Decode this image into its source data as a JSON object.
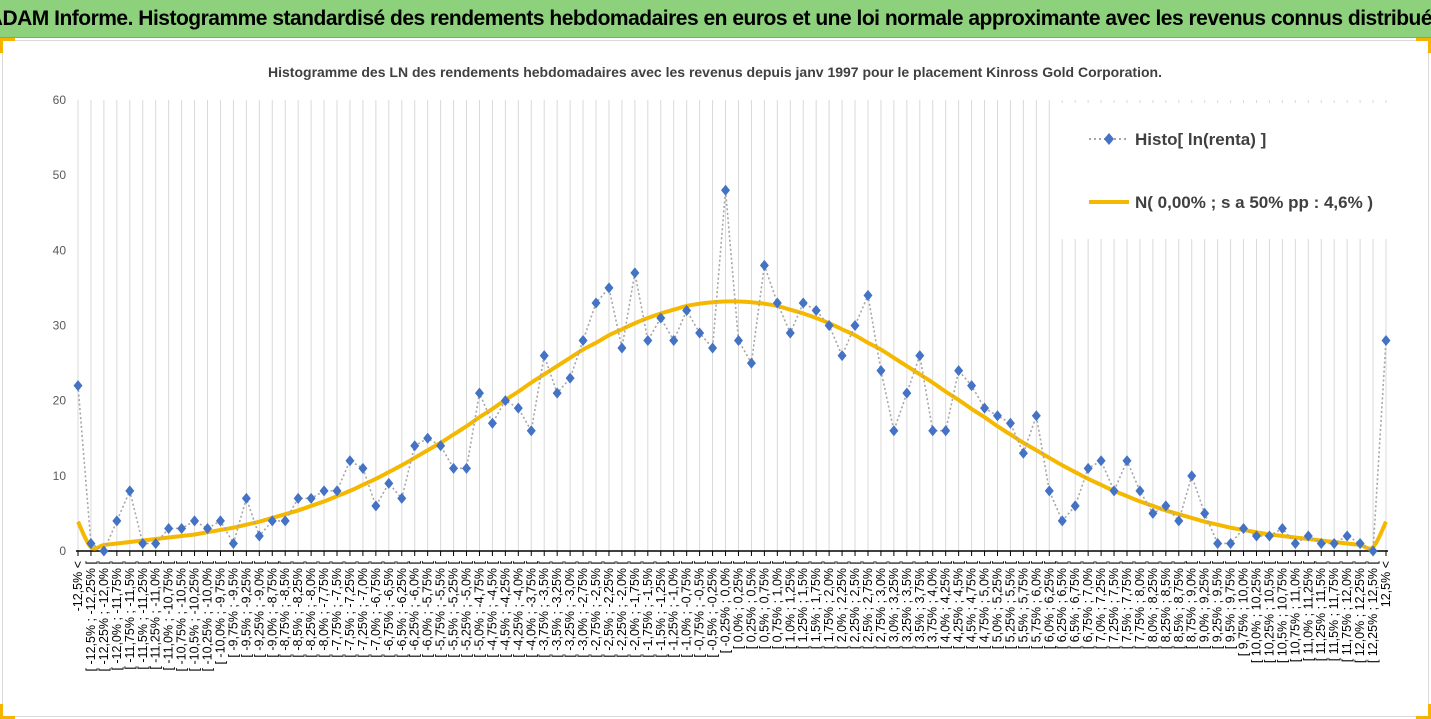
{
  "header": {
    "title": "ADAM Informe. Histogramme standardisé des rendements hebdomadaires en euros et une loi normale approximante avec les revenus connus distribués"
  },
  "chart_data": {
    "type": "line",
    "title": "Histogramme des LN des rendements hebdomadaires avec les revenus depuis janv 1997 pour le placement Kinross Gold Corporation.",
    "ylim": [
      0,
      60
    ],
    "yticks": [
      0,
      10,
      20,
      30,
      40,
      50,
      60
    ],
    "grid": "vertical",
    "legend_position": "top-right",
    "categories": [
      "-12,5% <",
      "[ -12,5% ; -12,25% [",
      "[ -12,25% ; -12,0% [",
      "[ -12,0% ; -11,75% [",
      "[ -11,75% ; -11,5% [",
      "[ -11,5% ; -11,25% [",
      "[ -11,25% ; -11,0% [",
      "[ -11,0% ; -10,75% [",
      "[ -10,75% ; -10,5% [",
      "[ -10,5% ; -10,25% [",
      "[ -10,25% ; -10,0% [",
      "[ -10,0% ; -9,75% [",
      "[ -9,75% ; -9,5% [",
      "[ -9,5% ; -9,25% [",
      "[ -9,25% ; -9,0% [",
      "[ -9,0% ; -8,75% [",
      "[ -8,75% ; -8,5% [",
      "[ -8,5% ; -8,25% [",
      "[ -8,25% ; -8,0% [",
      "[ -8,0% ; -7,75% [",
      "[ -7,75% ; -7,5% [",
      "[ -7,5% ; -7,25% [",
      "[ -7,25% ; -7,0% [",
      "[ -7,0% ; -6,75% [",
      "[ -6,75% ; -6,5% [",
      "[ -6,5% ; -6,25% [",
      "[ -6,25% ; -6,0% [",
      "[ -6,0% ; -5,75% [",
      "[ -5,75% ; -5,5% [",
      "[ -5,5% ; -5,25% [",
      "[ -5,25% ; -5,0% [",
      "[ -5,0% ; -4,75% [",
      "[ -4,75% ; -4,5% [",
      "[ -4,5% ; -4,25% [",
      "[ -4,25% ; -4,0% [",
      "[ -4,0% ; -3,75% [",
      "[ -3,75% ; -3,5% [",
      "[ -3,5% ; -3,25% [",
      "[ -3,25% ; -3,0% [",
      "[ -3,0% ; -2,75% [",
      "[ -2,75% ; -2,5% [",
      "[ -2,5% ; -2,25% [",
      "[ -2,25% ; -2,0% [",
      "[ -2,0% ; -1,75% [",
      "[ -1,75% ; -1,5% [",
      "[ -1,5% ; -1,25% [",
      "[ -1,25% ; -1,0% [",
      "[ -1,0% ; -0,75% [",
      "[ -0,75% ; -0,5% [",
      "[ -0,5% ; -0,25% [",
      "[ -0,25% ; 0,0% [",
      "[ 0,0% ; 0,25% [",
      "[ 0,25% ; 0,5% [",
      "[ 0,5% ; 0,75% [",
      "[ 0,75% ; 1,0% [",
      "[ 1,0% ; 1,25% [",
      "[ 1,25% ; 1,5% [",
      "[ 1,5% ; 1,75% [",
      "[ 1,75% ; 2,0% [",
      "[ 2,0% ; 2,25% [",
      "[ 2,25% ; 2,5% [",
      "[ 2,5% ; 2,75% [",
      "[ 2,75% ; 3,0% [",
      "[ 3,0% ; 3,25% [",
      "[ 3,25% ; 3,5% [",
      "[ 3,5% ; 3,75% [",
      "[ 3,75% ; 4,0% [",
      "[ 4,0% ; 4,25% [",
      "[ 4,25% ; 4,5% [",
      "[ 4,5% ; 4,75% [",
      "[ 4,75% ; 5,0% [",
      "[ 5,0% ; 5,25% [",
      "[ 5,25% ; 5,5% [",
      "[ 5,5% ; 5,75% [",
      "[ 5,75% ; 6,0% [",
      "[ 6,0% ; 6,25% [",
      "[ 6,25% ; 6,5% [",
      "[ 6,5% ; 6,75% [",
      "[ 6,75% ; 7,0% [",
      "[ 7,0% ; 7,25% [",
      "[ 7,25% ; 7,5% [",
      "[ 7,5% ; 7,75% [",
      "[ 7,75% ; 8,0% [",
      "[ 8,0% ; 8,25% [",
      "[ 8,25% ; 8,5% [",
      "[ 8,5% ; 8,75% [",
      "[ 8,75% ; 9,0% [",
      "[ 9,0% ; 9,25% [",
      "[ 9,25% ; 9,5% [",
      "[ 9,5% ; 9,75% [",
      "[ 9,75% ; 10,0% [",
      "[ 10,0% ; 10,25% [",
      "[ 10,25% ; 10,5% [",
      "[ 10,5% ; 10,75% [",
      "[ 10,75% ; 11,0% [",
      "[ 11,0% ; 11,25% [",
      "[ 11,25% ; 11,5% [",
      "[ 11,5% ; 11,75% [",
      "[ 11,75% ; 12,0% [",
      "[ 12,0% ; 12,25% [",
      "[ 12,25% ; 12,5% [",
      "12,5% <"
    ],
    "series": [
      {
        "name": "Histo[ ln(renta) ]",
        "style": "dotted-line-diamond-markers",
        "color": "#4472c4",
        "line_color": "#a6a6a6",
        "values": [
          22,
          1,
          0,
          4,
          8,
          1,
          1,
          3,
          3,
          4,
          3,
          4,
          1,
          7,
          2,
          4,
          4,
          7,
          7,
          8,
          8,
          12,
          11,
          6,
          9,
          7,
          14,
          15,
          14,
          11,
          11,
          21,
          17,
          20,
          19,
          16,
          26,
          21,
          23,
          28,
          33,
          35,
          27,
          37,
          28,
          31,
          28,
          32,
          29,
          27,
          48,
          28,
          25,
          38,
          33,
          29,
          33,
          32,
          30,
          26,
          30,
          34,
          24,
          16,
          21,
          26,
          16,
          16,
          24,
          22,
          19,
          18,
          17,
          13,
          18,
          8,
          4,
          6,
          11,
          12,
          8,
          12,
          8,
          5,
          6,
          4,
          10,
          5,
          1,
          1,
          3,
          2,
          2,
          3,
          1,
          2,
          1,
          1,
          2,
          1,
          0,
          28
        ]
      },
      {
        "name": "N( 0,00% ; s a 50% pp : 4,6% )",
        "style": "smooth-line",
        "color": "#f5b800",
        "values": [
          3.9,
          0.5,
          0.8,
          1.0,
          1.2,
          1.4,
          1.6,
          1.8,
          2.0,
          2.2,
          2.5,
          2.8,
          3.1,
          3.5,
          3.9,
          4.4,
          4.9,
          5.4,
          6.0,
          6.6,
          7.3,
          8.0,
          8.8,
          9.6,
          10.5,
          11.4,
          12.4,
          13.4,
          14.4,
          15.5,
          16.6,
          17.8,
          18.9,
          20.1,
          21.2,
          22.4,
          23.5,
          24.6,
          25.7,
          26.8,
          27.7,
          28.7,
          29.5,
          30.3,
          31.0,
          31.6,
          32.1,
          32.6,
          32.9,
          33.1,
          33.2,
          33.2,
          33.1,
          32.9,
          32.6,
          32.1,
          31.6,
          31.0,
          30.3,
          29.5,
          28.7,
          27.7,
          26.8,
          25.7,
          24.6,
          23.5,
          22.4,
          21.2,
          20.1,
          18.9,
          17.8,
          16.6,
          15.5,
          14.4,
          13.4,
          12.4,
          11.4,
          10.5,
          9.6,
          8.8,
          8.0,
          7.3,
          6.6,
          6.0,
          5.4,
          4.9,
          4.4,
          3.9,
          3.5,
          3.1,
          2.8,
          2.5,
          2.2,
          2.0,
          1.8,
          1.6,
          1.4,
          1.2,
          1.0,
          0.8,
          0.5,
          3.9
        ]
      }
    ]
  }
}
